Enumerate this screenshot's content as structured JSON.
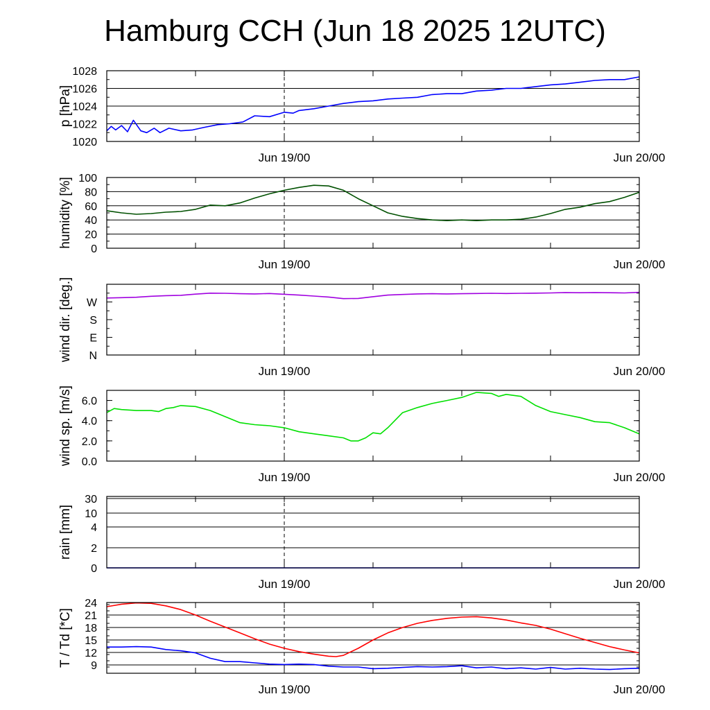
{
  "title": "Hamburg CCH (Jun 18 2025 12UTC)",
  "colors": {
    "pressure": "#0000ff",
    "humidity": "#005000",
    "wind_dir": "#a000e0",
    "wind_speed": "#00e000",
    "temperature": "#ff0000",
    "dewpoint": "#0000ff",
    "grid": "#000000"
  },
  "chart_data": [
    {
      "type": "line",
      "ylabel": "p [hPa]",
      "ylim": [
        1020,
        1028
      ],
      "yticks": [
        1020,
        1022,
        1024,
        1026,
        1028
      ],
      "ytick_labels": [
        "1020",
        "1022",
        "1024",
        "1026",
        "1028"
      ],
      "xlim": [
        0,
        36
      ],
      "xtick_values": [
        12,
        36
      ],
      "xtick_labels": [
        "Jun 19/00",
        "Jun 20/00"
      ],
      "grid": true,
      "series": [
        {
          "color_key": "pressure",
          "x": [
            0,
            0.3,
            0.6,
            1,
            1.4,
            1.8,
            2.3,
            2.7,
            3.2,
            3.6,
            4.2,
            5,
            5.8,
            6.6,
            7.5,
            8.3,
            9.2,
            10,
            11,
            12,
            12.6,
            13,
            14,
            15,
            16,
            17,
            18,
            19,
            20,
            21,
            22,
            23,
            24,
            25,
            26,
            27,
            28,
            29,
            30,
            31,
            32,
            33,
            34,
            35,
            36
          ],
          "y": [
            1021.2,
            1021.7,
            1021.3,
            1021.8,
            1021.1,
            1022.4,
            1021.2,
            1021.0,
            1021.5,
            1021.0,
            1021.5,
            1021.2,
            1021.3,
            1021.6,
            1021.9,
            1022.0,
            1022.2,
            1022.9,
            1022.8,
            1023.3,
            1023.2,
            1023.5,
            1023.7,
            1024.0,
            1024.3,
            1024.5,
            1024.6,
            1024.8,
            1024.9,
            1025.0,
            1025.3,
            1025.4,
            1025.4,
            1025.7,
            1025.8,
            1026.0,
            1026.0,
            1026.2,
            1026.4,
            1026.5,
            1026.7,
            1026.9,
            1027.0,
            1027.0,
            1027.3
          ]
        }
      ]
    },
    {
      "type": "line",
      "ylabel": "humidity [%]",
      "ylim": [
        0,
        100
      ],
      "yticks": [
        0,
        20,
        40,
        60,
        80,
        100
      ],
      "ytick_labels": [
        "0",
        "20",
        "40",
        "60",
        "80",
        "100"
      ],
      "xlim": [
        0,
        36
      ],
      "xtick_values": [
        12,
        36
      ],
      "xtick_labels": [
        "Jun 19/00",
        "Jun 20/00"
      ],
      "grid": true,
      "series": [
        {
          "color_key": "humidity",
          "x": [
            0,
            1,
            2,
            3,
            4,
            5,
            6,
            7,
            8,
            9,
            10,
            11,
            12,
            13,
            14,
            15,
            16,
            17,
            18,
            19,
            20,
            21,
            22,
            23,
            24,
            25,
            26,
            27,
            28,
            29,
            30,
            31,
            32,
            33,
            34,
            35,
            36
          ],
          "y": [
            53,
            50,
            48,
            49,
            51,
            52,
            55,
            61,
            60,
            64,
            71,
            77,
            82,
            86,
            89,
            88,
            82,
            70,
            60,
            50,
            45,
            42,
            40,
            39,
            40,
            39,
            40,
            40,
            41,
            44,
            49,
            55,
            58,
            63,
            66,
            72,
            79
          ]
        }
      ]
    },
    {
      "type": "line",
      "ylabel": "wind dir. [deg.]",
      "ylim": [
        0,
        360
      ],
      "yticks": [
        0,
        90,
        180,
        270,
        360
      ],
      "ytick_labels": [
        "N",
        "E",
        "S",
        "W",
        ""
      ],
      "xlim": [
        0,
        36
      ],
      "xtick_values": [
        12,
        36
      ],
      "xtick_labels": [
        "Jun 19/00",
        "Jun 20/00"
      ],
      "grid": false,
      "series": [
        {
          "color_key": "wind_dir",
          "x": [
            0,
            1,
            2,
            3,
            4,
            5,
            6,
            7,
            8,
            9,
            10,
            11,
            12,
            13,
            14,
            15,
            16,
            17,
            18,
            19,
            20,
            21,
            22,
            23,
            24,
            25,
            26,
            27,
            28,
            29,
            30,
            31,
            32,
            33,
            34,
            35,
            36
          ],
          "y": [
            290,
            292,
            294,
            299,
            302,
            304,
            310,
            315,
            314,
            312,
            311,
            313,
            309,
            305,
            300,
            295,
            287,
            288,
            297,
            305,
            308,
            311,
            312,
            311,
            312,
            313,
            314,
            313,
            314,
            315,
            316,
            318,
            317,
            318,
            317,
            316,
            319
          ]
        }
      ]
    },
    {
      "type": "line",
      "ylabel": "wind sp. [m/s]",
      "ylim": [
        0,
        7
      ],
      "yticks": [
        0,
        2,
        4,
        6
      ],
      "ytick_labels": [
        "0.0",
        "2.0",
        "4.0",
        "6.0"
      ],
      "xlim": [
        0,
        36
      ],
      "xtick_values": [
        12,
        36
      ],
      "xtick_labels": [
        "Jun 19/00",
        "Jun 20/00"
      ],
      "grid": false,
      "series": [
        {
          "color_key": "wind_speed",
          "x": [
            0,
            0.5,
            1,
            2,
            3,
            3.5,
            4,
            4.5,
            5,
            6,
            7,
            8,
            9,
            10,
            11,
            12,
            13,
            14,
            15,
            16,
            16.5,
            17,
            17.5,
            18,
            18.5,
            19,
            20,
            21,
            22,
            23,
            24,
            25,
            26,
            26.5,
            27,
            28,
            29,
            30,
            31,
            32,
            33,
            34,
            35,
            36
          ],
          "y": [
            4.8,
            5.2,
            5.1,
            5.0,
            5.0,
            4.9,
            5.2,
            5.3,
            5.5,
            5.4,
            5.0,
            4.4,
            3.8,
            3.6,
            3.5,
            3.3,
            2.9,
            2.7,
            2.5,
            2.3,
            2.0,
            2.0,
            2.3,
            2.8,
            2.7,
            3.3,
            4.8,
            5.3,
            5.7,
            6.0,
            6.3,
            6.8,
            6.7,
            6.4,
            6.6,
            6.4,
            5.5,
            4.9,
            4.6,
            4.3,
            3.9,
            3.8,
            3.3,
            2.7
          ]
        }
      ]
    },
    {
      "type": "line",
      "ylabel": "rain [mm]",
      "yticks_display": [
        "0",
        "2",
        "4",
        "10",
        "30"
      ],
      "xlim": [
        0,
        36
      ],
      "xtick_values": [
        12,
        36
      ],
      "xtick_labels": [
        "Jun 19/00",
        "Jun 20/00"
      ],
      "grid": true,
      "series": [
        {
          "color_key": "dewpoint",
          "x": [
            0,
            36
          ],
          "y": [
            0,
            0
          ]
        }
      ]
    },
    {
      "type": "line",
      "ylabel": "T / Td [*C]",
      "ylim": [
        7,
        24
      ],
      "yticks": [
        9,
        12,
        15,
        18,
        21,
        24
      ],
      "ytick_labels": [
        "9",
        "12",
        "15",
        "18",
        "21",
        "24"
      ],
      "xlim": [
        0,
        36
      ],
      "xtick_values": [
        12,
        36
      ],
      "xtick_labels": [
        "Jun 19/00",
        "Jun 20/00"
      ],
      "grid": true,
      "series": [
        {
          "color_key": "temperature",
          "x": [
            0,
            1,
            2,
            3,
            4,
            5,
            6,
            7,
            8,
            9,
            10,
            11,
            12,
            13,
            14,
            15,
            15.5,
            16,
            17,
            18,
            19,
            20,
            21,
            22,
            23,
            24,
            25,
            26,
            27,
            28,
            29,
            30,
            31,
            32,
            33,
            34,
            35,
            36
          ],
          "y": [
            23.0,
            23.6,
            23.9,
            23.8,
            23.2,
            22.3,
            21.0,
            19.5,
            18.1,
            16.7,
            15.3,
            14.0,
            13.0,
            12.2,
            11.6,
            11.1,
            11.0,
            11.3,
            13.0,
            15.0,
            16.7,
            18.0,
            19.0,
            19.7,
            20.2,
            20.5,
            20.6,
            20.3,
            19.8,
            19.1,
            18.5,
            17.6,
            16.5,
            15.4,
            14.4,
            13.4,
            12.6,
            11.9
          ]
        },
        {
          "color_key": "dewpoint",
          "x": [
            0,
            1,
            2,
            3,
            4,
            5,
            6,
            7,
            8,
            9,
            10,
            11,
            12,
            13,
            14,
            15,
            16,
            17,
            18,
            19,
            20,
            21,
            22,
            23,
            24,
            25,
            26,
            27,
            28,
            29,
            30,
            31,
            32,
            33,
            34,
            35,
            36
          ],
          "y": [
            13.3,
            13.3,
            13.4,
            13.3,
            12.7,
            12.4,
            11.9,
            10.6,
            9.8,
            9.8,
            9.5,
            9.2,
            9.1,
            9.2,
            9.1,
            8.7,
            8.5,
            8.5,
            8.1,
            8.2,
            8.4,
            8.6,
            8.5,
            8.6,
            8.8,
            8.3,
            8.5,
            8.1,
            8.3,
            8.0,
            8.4,
            8.0,
            8.2,
            8.0,
            7.9,
            8.1,
            8.2
          ]
        }
      ]
    }
  ]
}
